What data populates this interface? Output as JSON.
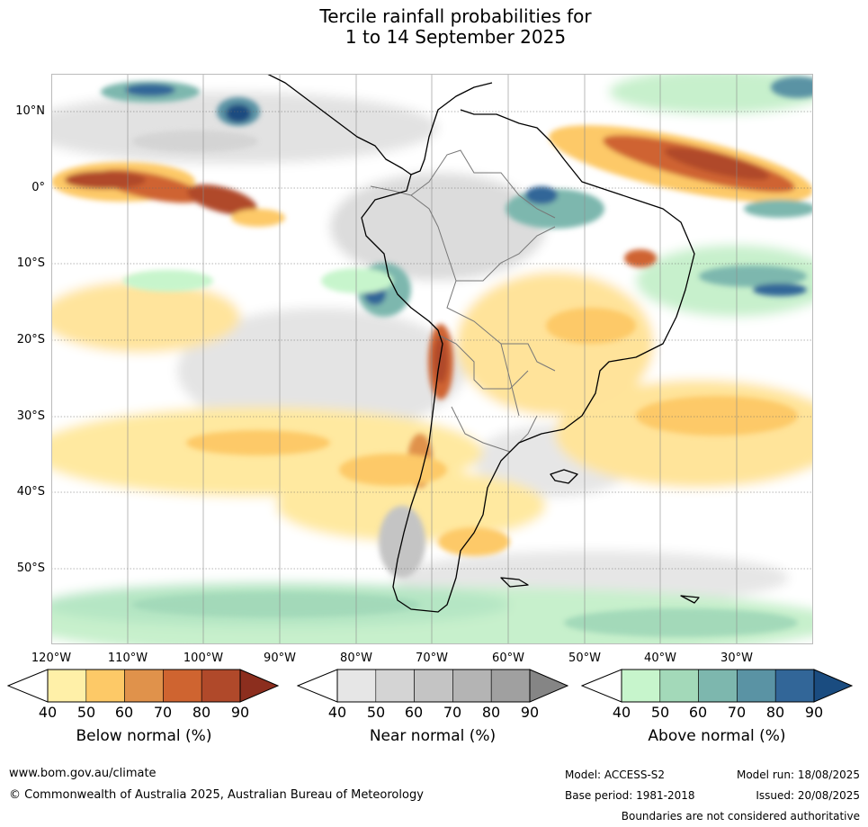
{
  "title": {
    "line1": "Tercile rainfall probabilities for",
    "line2": "1 to 14 September 2025"
  },
  "map": {
    "lat_labels": [
      "10°N",
      "0°",
      "10°S",
      "20°S",
      "30°S",
      "40°S",
      "50°S"
    ],
    "lon_labels": [
      "120°W",
      "110°W",
      "100°W",
      "90°W",
      "80°W",
      "70°W",
      "60°W",
      "50°W",
      "40°W",
      "30°W"
    ],
    "extent": {
      "lon": [
        -120,
        -20
      ],
      "lat": [
        -60,
        15
      ]
    }
  },
  "colorbars": {
    "below": {
      "title": "Below normal (%)",
      "ticks": [
        "40",
        "50",
        "60",
        "70",
        "80",
        "90"
      ],
      "colors": [
        "#fff0a8",
        "#fdc967",
        "#e0924b",
        "#cf6430",
        "#b0492a",
        "#8c2e1e"
      ]
    },
    "near": {
      "title": "Near normal (%)",
      "ticks": [
        "40",
        "50",
        "60",
        "70",
        "80",
        "90"
      ],
      "colors": [
        "#e6e6e6",
        "#d4d4d4",
        "#c4c4c4",
        "#b4b4b4",
        "#a0a0a0",
        "#858585"
      ]
    },
    "above": {
      "title": "Above normal (%)",
      "ticks": [
        "40",
        "50",
        "60",
        "70",
        "80",
        "90"
      ],
      "colors": [
        "#c7f5cc",
        "#a3d9b9",
        "#7db7ae",
        "#5a93a4",
        "#326698",
        "#1a4c80"
      ]
    }
  },
  "footer": {
    "url": "www.bom.gov.au/climate",
    "copyright": "© Commonwealth of Australia 2025, Australian Bureau of Meteorology",
    "model": "Model: ACCESS-S2",
    "base_period": "Base period: 1981-2018",
    "model_run": "Model run: 18/08/2025",
    "issued": "Issued: 20/08/2025",
    "disclaimer": "Boundaries are not considered authoritative"
  }
}
